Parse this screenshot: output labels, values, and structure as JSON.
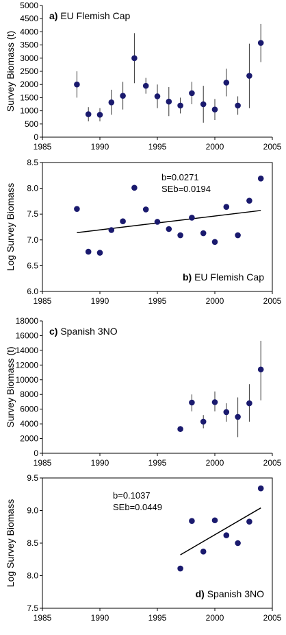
{
  "colors": {
    "marker": "#1a1a6e",
    "axis": "#000000",
    "fit_line": "#000000"
  },
  "chart_data": [
    {
      "type": "scatter",
      "panel_letter": "a)",
      "panel_title": "EU Flemish Cap",
      "title_position": "top-left",
      "ylabel": "Survey Biomass (t)",
      "xlim": [
        1985,
        2005
      ],
      "ylim": [
        0,
        5000
      ],
      "xticks": [
        1985,
        1990,
        1995,
        2000,
        2005
      ],
      "yticks": [
        0,
        500,
        1000,
        1500,
        2000,
        2500,
        3000,
        3500,
        4000,
        4500,
        5000
      ],
      "error_bars": true,
      "points": [
        {
          "x": 1988,
          "y": 2000,
          "lo": 1500,
          "hi": 2500
        },
        {
          "x": 1989,
          "y": 870,
          "lo": 600,
          "hi": 1140
        },
        {
          "x": 1990,
          "y": 850,
          "lo": 600,
          "hi": 1100
        },
        {
          "x": 1991,
          "y": 1320,
          "lo": 850,
          "hi": 1800
        },
        {
          "x": 1992,
          "y": 1570,
          "lo": 1050,
          "hi": 2100
        },
        {
          "x": 1993,
          "y": 3000,
          "lo": 2050,
          "hi": 3950
        },
        {
          "x": 1994,
          "y": 1950,
          "lo": 1650,
          "hi": 2250
        },
        {
          "x": 1995,
          "y": 1550,
          "lo": 1100,
          "hi": 2000
        },
        {
          "x": 1996,
          "y": 1350,
          "lo": 800,
          "hi": 1900
        },
        {
          "x": 1997,
          "y": 1200,
          "lo": 900,
          "hi": 1500
        },
        {
          "x": 1998,
          "y": 1670,
          "lo": 1250,
          "hi": 2100
        },
        {
          "x": 1999,
          "y": 1250,
          "lo": 550,
          "hi": 1950
        },
        {
          "x": 2000,
          "y": 1050,
          "lo": 650,
          "hi": 1450
        },
        {
          "x": 2001,
          "y": 2070,
          "lo": 1550,
          "hi": 2600
        },
        {
          "x": 2002,
          "y": 1200,
          "lo": 850,
          "hi": 1550
        },
        {
          "x": 2003,
          "y": 2330,
          "lo": 1100,
          "hi": 3550
        },
        {
          "x": 2004,
          "y": 3580,
          "lo": 2850,
          "hi": 4300
        }
      ]
    },
    {
      "type": "scatter",
      "panel_letter": "b)",
      "panel_title": "EU Flemish Cap",
      "title_position": "bottom-right",
      "ylabel": "Log Survey Biomass",
      "xlim": [
        1985,
        2005
      ],
      "ylim": [
        6.0,
        8.5
      ],
      "xticks": [
        1985,
        1990,
        1995,
        2000,
        2005
      ],
      "yticks": [
        6.0,
        6.5,
        7.0,
        7.5,
        8.0,
        8.5
      ],
      "ytick_labels": [
        "6.0",
        "6.5",
        "7.0",
        "7.5",
        "8.0",
        "8.5"
      ],
      "stat_b": "b=0.0271",
      "stat_se": "SEb=0.0194",
      "fit_line": {
        "x0": 1988,
        "y0": 7.14,
        "x1": 2004,
        "y1": 7.57
      },
      "points": [
        {
          "x": 1988,
          "y": 7.6
        },
        {
          "x": 1989,
          "y": 6.77
        },
        {
          "x": 1990,
          "y": 6.75
        },
        {
          "x": 1991,
          "y": 7.19
        },
        {
          "x": 1992,
          "y": 7.36
        },
        {
          "x": 1993,
          "y": 8.01
        },
        {
          "x": 1994,
          "y": 7.59
        },
        {
          "x": 1995,
          "y": 7.35
        },
        {
          "x": 1996,
          "y": 7.21
        },
        {
          "x": 1997,
          "y": 7.09
        },
        {
          "x": 1998,
          "y": 7.43
        },
        {
          "x": 1999,
          "y": 7.13
        },
        {
          "x": 2000,
          "y": 6.96
        },
        {
          "x": 2001,
          "y": 7.64
        },
        {
          "x": 2002,
          "y": 7.09
        },
        {
          "x": 2003,
          "y": 7.76
        },
        {
          "x": 2004,
          "y": 8.19
        }
      ]
    },
    {
      "type": "scatter",
      "panel_letter": "c)",
      "panel_title": "Spanish 3NO",
      "title_position": "top-left",
      "ylabel": "Survey Biomass (t)",
      "xlim": [
        1985,
        2005
      ],
      "ylim": [
        0,
        18000
      ],
      "xticks": [
        1985,
        1990,
        1995,
        2000,
        2005
      ],
      "yticks": [
        0,
        2000,
        4000,
        6000,
        8000,
        10000,
        12000,
        14000,
        16000,
        18000
      ],
      "error_bars": true,
      "points": [
        {
          "x": 1997,
          "y": 3300,
          "lo": 2900,
          "hi": 3700
        },
        {
          "x": 1998,
          "y": 6900,
          "lo": 5700,
          "hi": 8000
        },
        {
          "x": 1999,
          "y": 4300,
          "lo": 3400,
          "hi": 5200
        },
        {
          "x": 2000,
          "y": 6950,
          "lo": 5700,
          "hi": 8400
        },
        {
          "x": 2001,
          "y": 5600,
          "lo": 4300,
          "hi": 6800
        },
        {
          "x": 2002,
          "y": 4950,
          "lo": 2200,
          "hi": 7600
        },
        {
          "x": 2003,
          "y": 6800,
          "lo": 4300,
          "hi": 9400
        },
        {
          "x": 2004,
          "y": 11400,
          "lo": 7200,
          "hi": 15300
        }
      ]
    },
    {
      "type": "scatter",
      "panel_letter": "d)",
      "panel_title": "Spanish 3NO",
      "title_position": "bottom-right",
      "ylabel": "Log Survey Biomass",
      "xlim": [
        1985,
        2005
      ],
      "ylim": [
        7.5,
        9.5
      ],
      "xticks": [
        1985,
        1990,
        1995,
        2000,
        2005
      ],
      "yticks": [
        7.5,
        8.0,
        8.5,
        9.0,
        9.5
      ],
      "ytick_labels": [
        "7.5",
        "8.0",
        "8.5",
        "9.0",
        "9.5"
      ],
      "stat_b": "b=0.1037",
      "stat_se": "SEb=0.0449",
      "fit_line": {
        "x0": 1997,
        "y0": 8.32,
        "x1": 2004,
        "y1": 9.04
      },
      "points": [
        {
          "x": 1997,
          "y": 8.11
        },
        {
          "x": 1998,
          "y": 8.84
        },
        {
          "x": 1999,
          "y": 8.37
        },
        {
          "x": 2000,
          "y": 8.85
        },
        {
          "x": 2001,
          "y": 8.62
        },
        {
          "x": 2002,
          "y": 8.5
        },
        {
          "x": 2003,
          "y": 8.83
        },
        {
          "x": 2004,
          "y": 9.34
        }
      ]
    }
  ]
}
